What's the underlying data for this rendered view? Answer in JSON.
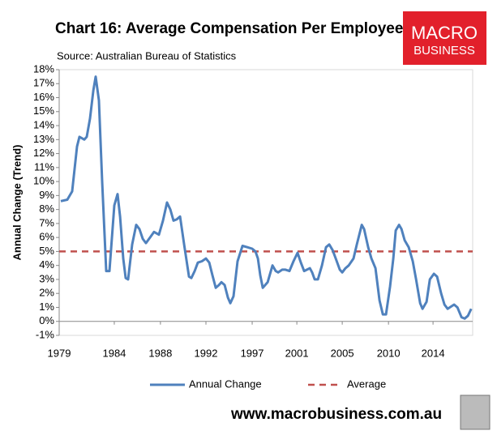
{
  "chart_data": {
    "type": "line",
    "title": "Chart 16: Average Compensation Per Employee",
    "subtitle": "Source: Australian Bureau of Statistics",
    "y_label": "Annual Change (Trend)",
    "logo": [
      "MACRO",
      "BUSINESS"
    ],
    "footer": "www.macrobusiness.com.au",
    "x": [
      1979.15,
      1979.76,
      1980.22,
      1980.67,
      1980.9,
      1981.36,
      1981.59,
      1981.89,
      1982.2,
      1982.42,
      1982.73,
      1983.03,
      1983.41,
      1983.72,
      1984.17,
      1984.48,
      1984.71,
      1985.01,
      1985.24,
      1985.47,
      1985.85,
      1986.23,
      1986.53,
      1986.84,
      1987.14,
      1987.52,
      1987.9,
      1988.36,
      1988.74,
      1989.12,
      1989.43,
      1989.73,
      1990.04,
      1990.34,
      1990.72,
      1991.18,
      1991.4,
      1991.71,
      1992.01,
      1992.39,
      1992.77,
      1993.08,
      1993.38,
      1993.69,
      1993.99,
      1994.22,
      1994.53,
      1994.83,
      1995.06,
      1995.36,
      1995.74,
      1996.2,
      1996.66,
      1997.11,
      1997.42,
      1997.65,
      1997.87,
      1998.1,
      1998.56,
      1999.02,
      1999.32,
      1999.55,
      1999.93,
      2000.23,
      2000.61,
      2000.99,
      2001.37,
      2001.68,
      2001.98,
      2002.52,
      2002.74,
      2002.97,
      2003.28,
      2003.66,
      2004.04,
      2004.34,
      2004.65,
      2004.95,
      2005.33,
      2005.56,
      2005.86,
      2006.17,
      2006.62,
      2006.93,
      2007.39,
      2007.61,
      2007.99,
      2008.3,
      2008.68,
      2009.06,
      2009.37,
      2009.67,
      2010.05,
      2010.35,
      2010.58,
      2010.89,
      2011.12,
      2011.42,
      2011.8,
      2012.18,
      2012.49,
      2012.87,
      2013.09,
      2013.47,
      2013.78,
      2014.16,
      2014.46,
      2014.84,
      2015.15,
      2015.45,
      2016.06,
      2016.37,
      2016.75,
      2017.05,
      2017.36,
      2017.66
    ],
    "series": [
      {
        "name": "Annual Change",
        "color": "#4f81bd",
        "values": [
          8.6,
          8.7,
          9.3,
          12.5,
          13.2,
          13.0,
          13.2,
          14.5,
          16.5,
          17.5,
          15.8,
          10.0,
          3.6,
          3.6,
          8.3,
          9.1,
          7.5,
          4.5,
          3.1,
          3.0,
          5.5,
          6.9,
          6.6,
          5.9,
          5.6,
          6.0,
          6.4,
          6.2,
          7.2,
          8.5,
          8.0,
          7.2,
          7.3,
          7.5,
          5.5,
          3.2,
          3.1,
          3.6,
          4.2,
          4.3,
          4.5,
          4.2,
          3.3,
          2.4,
          2.6,
          2.8,
          2.6,
          1.7,
          1.3,
          1.8,
          4.3,
          5.4,
          5.3,
          5.2,
          5.0,
          4.5,
          3.3,
          2.4,
          2.8,
          4.0,
          3.6,
          3.5,
          3.7,
          3.7,
          3.6,
          4.3,
          4.9,
          4.2,
          3.6,
          3.8,
          3.5,
          3.0,
          3.0,
          4.0,
          5.3,
          5.5,
          5.1,
          4.5,
          3.7,
          3.5,
          3.8,
          4.0,
          4.5,
          5.5,
          6.9,
          6.6,
          5.3,
          4.5,
          3.8,
          1.5,
          0.5,
          0.5,
          2.5,
          4.5,
          6.5,
          6.9,
          6.6,
          5.8,
          5.3,
          4.3,
          3.0,
          1.3,
          0.9,
          1.4,
          3.0,
          3.4,
          3.2,
          2.0,
          1.2,
          0.9,
          1.2,
          1.0,
          0.3,
          0.2,
          0.4,
          0.9
        ]
      }
    ],
    "reference_line": {
      "name": "Average",
      "value": 5,
      "color": "#c0504d"
    },
    "xlim": [
      1979,
      2017.8
    ],
    "xticks": [
      {
        "value": 1979,
        "label": "1979"
      },
      {
        "value": 1984.17,
        "label": "1984"
      },
      {
        "value": 1988.5,
        "label": "1988"
      },
      {
        "value": 1992.77,
        "label": "1992"
      },
      {
        "value": 1997.11,
        "label": "1997"
      },
      {
        "value": 2001.3,
        "label": "2001"
      },
      {
        "value": 2005.56,
        "label": "2005"
      },
      {
        "value": 2009.9,
        "label": "2010"
      },
      {
        "value": 2014.08,
        "label": "2014"
      }
    ],
    "ylim": [
      -1,
      18
    ],
    "yticks": [
      {
        "value": -1,
        "label": "-1%"
      },
      {
        "value": 0,
        "label": "0%"
      },
      {
        "value": 1,
        "label": "1%"
      },
      {
        "value": 2,
        "label": "2%"
      },
      {
        "value": 3,
        "label": "3%"
      },
      {
        "value": 4,
        "label": "4%"
      },
      {
        "value": 5,
        "label": "5%"
      },
      {
        "value": 6,
        "label": "6%"
      },
      {
        "value": 7,
        "label": "7%"
      },
      {
        "value": 8,
        "label": "8%"
      },
      {
        "value": 9,
        "label": "9%"
      },
      {
        "value": 10,
        "label": "10%"
      },
      {
        "value": 11,
        "label": "11%"
      },
      {
        "value": 12,
        "label": "12%"
      },
      {
        "value": 13,
        "label": "13%"
      },
      {
        "value": 14,
        "label": "14%"
      },
      {
        "value": 15,
        "label": "15%"
      },
      {
        "value": 16,
        "label": "16%"
      },
      {
        "value": 17,
        "label": "17%"
      },
      {
        "value": 18,
        "label": "18%"
      }
    ],
    "grid": false
  }
}
